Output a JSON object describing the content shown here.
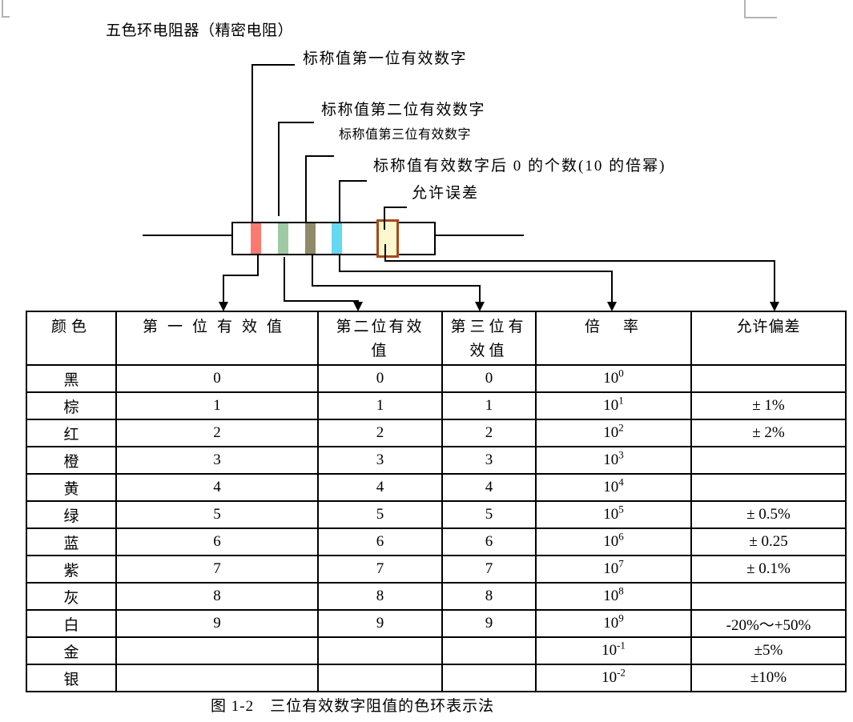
{
  "page": {
    "title": "五色环电阻器（精密电阻）",
    "caption": "图 1-2　三位有效数字阻值的色环表示法"
  },
  "diagram": {
    "band_labels": [
      "标称值第一位有效数字",
      "标称值第二位有效数字",
      "标称值第三位有效数字",
      "标称值有效数字后 0 的个数(10 的倍幂)",
      "允许误差"
    ],
    "bands": [
      {
        "name": "first-digit-band",
        "color": "#fa7a72"
      },
      {
        "name": "second-digit-band",
        "color": "#9fc9a5"
      },
      {
        "name": "third-digit-band",
        "color": "#8f8a68"
      },
      {
        "name": "multiplier-band",
        "color": "#66d9f2"
      },
      {
        "name": "tolerance-band",
        "fill": "#fbf8cf",
        "border": "#a44a1a"
      }
    ]
  },
  "table": {
    "headers": [
      {
        "lines": [
          "颜色"
        ]
      },
      {
        "lines": [
          "第一位有效值"
        ]
      },
      {
        "lines": [
          "第二位有效",
          "值"
        ]
      },
      {
        "lines": [
          "第三位有",
          "效值"
        ]
      },
      {
        "lines": [
          "倍　率"
        ]
      },
      {
        "lines": [
          "允许偏差"
        ]
      }
    ],
    "multiplier_base": "10",
    "rows": [
      {
        "color": "黑",
        "d1": "0",
        "d2": "0",
        "d3": "0",
        "exp": "0",
        "tol": ""
      },
      {
        "color": "棕",
        "d1": "1",
        "d2": "1",
        "d3": "1",
        "exp": "1",
        "tol": "± 1%"
      },
      {
        "color": "红",
        "d1": "2",
        "d2": "2",
        "d3": "2",
        "exp": "2",
        "tol": "± 2%"
      },
      {
        "color": "橙",
        "d1": "3",
        "d2": "3",
        "d3": "3",
        "exp": "3",
        "tol": ""
      },
      {
        "color": "黄",
        "d1": "4",
        "d2": "4",
        "d3": "4",
        "exp": "4",
        "tol": ""
      },
      {
        "color": "绿",
        "d1": "5",
        "d2": "5",
        "d3": "5",
        "exp": "5",
        "tol": "± 0.5%"
      },
      {
        "color": "蓝",
        "d1": "6",
        "d2": "6",
        "d3": "6",
        "exp": "6",
        "tol": "± 0.25"
      },
      {
        "color": "紫",
        "d1": "7",
        "d2": "7",
        "d3": "7",
        "exp": "7",
        "tol": "± 0.1%"
      },
      {
        "color": "灰",
        "d1": "8",
        "d2": "8",
        "d3": "8",
        "exp": "8",
        "tol": ""
      },
      {
        "color": "白",
        "d1": "9",
        "d2": "9",
        "d3": "9",
        "exp": "9",
        "tol": "-20%～+50%"
      },
      {
        "color": "金",
        "d1": "",
        "d2": "",
        "d3": "",
        "exp": "-1",
        "tol": "±5%"
      },
      {
        "color": "银",
        "d1": "",
        "d2": "",
        "d3": "",
        "exp": "-2",
        "tol": "±10%"
      }
    ]
  }
}
